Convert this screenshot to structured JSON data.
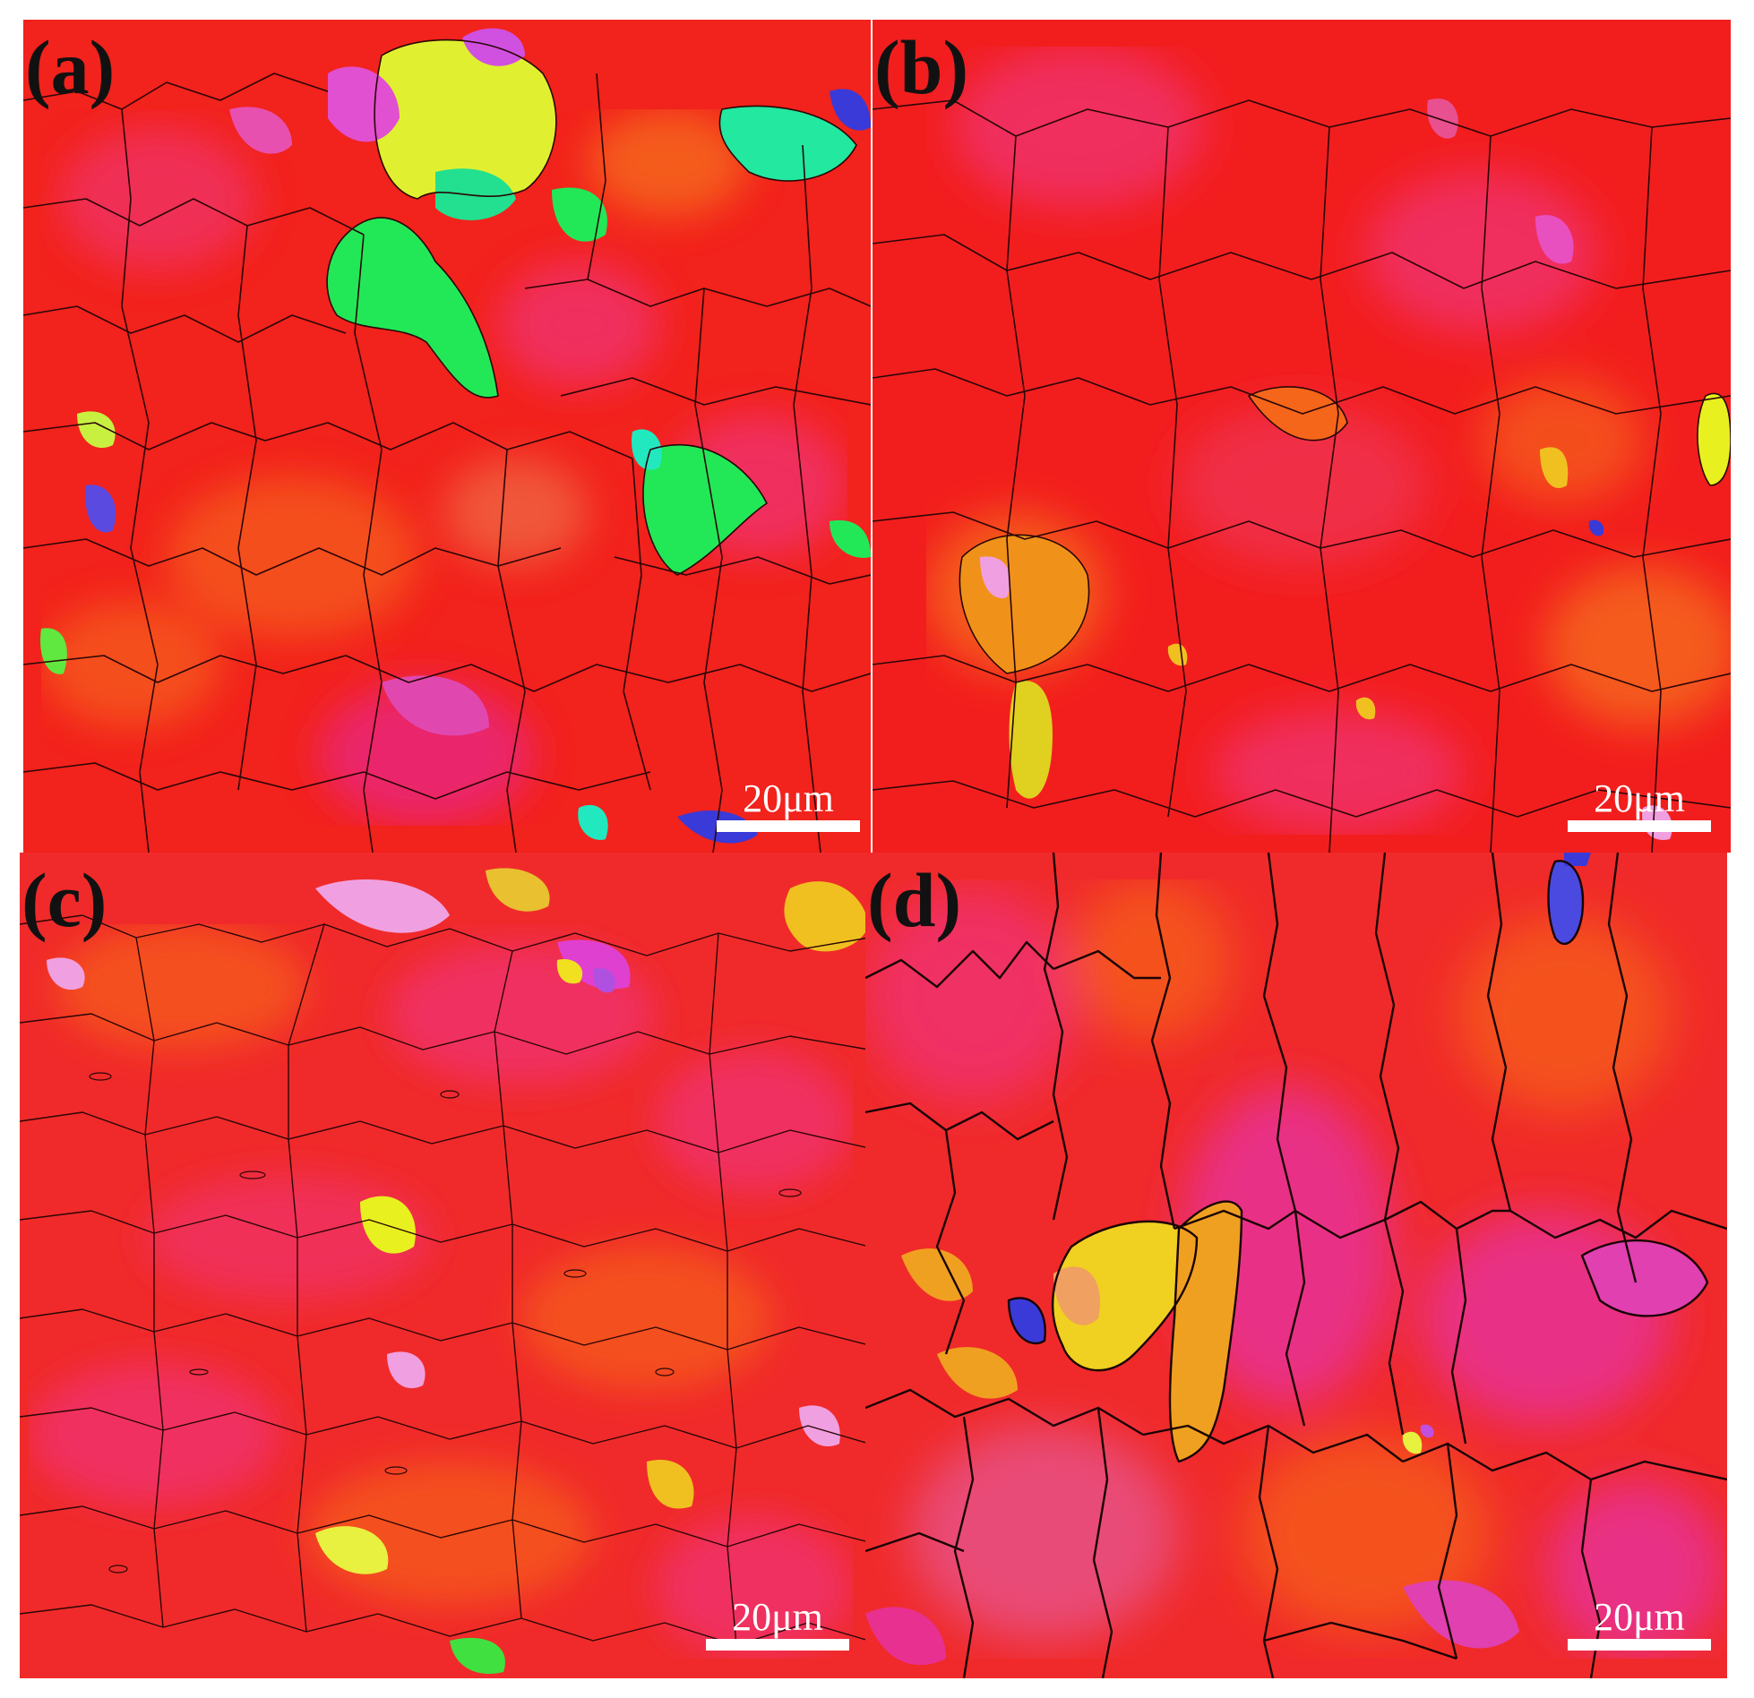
{
  "figure": {
    "panels": [
      {
        "id": "a",
        "label": "(a)",
        "scale_label": "20μm"
      },
      {
        "id": "b",
        "label": "(b)",
        "scale_label": "20μm"
      },
      {
        "id": "c",
        "label": "(c)",
        "scale_label": "20μm"
      },
      {
        "id": "d",
        "label": "(d)",
        "scale_label": "20μm"
      }
    ]
  },
  "colors": {
    "grain_red": "#f21e1e",
    "grain_orange": "#f5561a",
    "grain_pink": "#f0306a",
    "grain_magenta": "#e0309a",
    "grain_green": "#22e858",
    "grain_cyan": "#1ee0b0",
    "grain_yellow": "#e8f020",
    "grain_blue": "#3a3ad8",
    "grain_violet": "#b050e0",
    "boundary": "#2a0606",
    "scalebar": "#ffffff"
  }
}
